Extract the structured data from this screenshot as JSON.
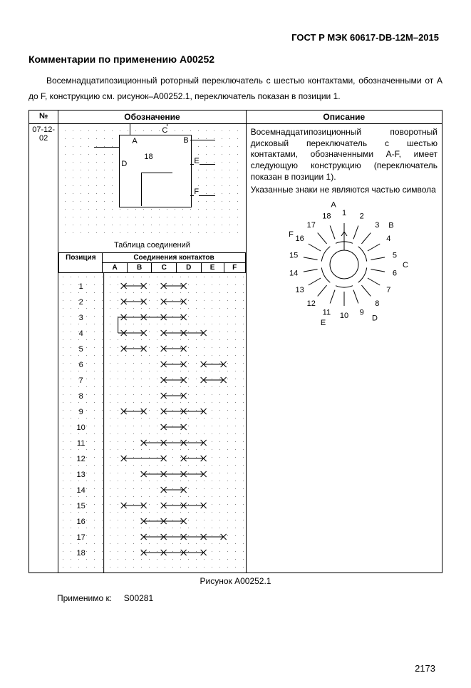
{
  "doc_id": "ГОСТ Р МЭК 60617-DB-12M–2015",
  "section_title": "Комментарии по применению A00252",
  "intro": "Восемнадцатипозиционный роторный переключатель с шестью контактами, обозначенными от A до F, конструкцию см. рисунок–A00252.1, переключатель показан в позиции 1.",
  "num_header": "№",
  "num_cell": "07-12-02",
  "col_left_header": "Обозначение",
  "col_right_header": "Описание",
  "symbol": {
    "labels": {
      "A": "A",
      "B": "B",
      "C": "C",
      "D": "D",
      "E": "E",
      "F": "F",
      "18": "18"
    },
    "caption": "Таблица соединений"
  },
  "conn_pos_header": "Позиция",
  "conn_contacts_header": "Соединения контактов",
  "columns": [
    "A",
    "B",
    "C",
    "D",
    "E",
    "F"
  ],
  "positions": [
    1,
    2,
    3,
    4,
    5,
    6,
    7,
    8,
    9,
    10,
    11,
    12,
    13,
    14,
    15,
    16,
    17,
    18
  ],
  "connections": {
    "1": [
      [
        0,
        1
      ],
      [
        2,
        3
      ]
    ],
    "2": [
      [
        0,
        1
      ],
      [
        2,
        3
      ]
    ],
    "3": [
      [
        0,
        1,
        2,
        3
      ]
    ],
    "4": [
      [
        0,
        1
      ],
      [
        2,
        3,
        4
      ]
    ],
    "5": [
      [
        0,
        1
      ],
      [
        2,
        3
      ]
    ],
    "6": [
      [
        2,
        3
      ],
      [
        4,
        5
      ]
    ],
    "7": [
      [
        2,
        3
      ],
      [
        4,
        5
      ]
    ],
    "8": [
      [
        2,
        3
      ]
    ],
    "9": [
      [
        0,
        1
      ],
      [
        2,
        3,
        4
      ]
    ],
    "10": [
      [
        2,
        3
      ]
    ],
    "11": [
      [
        1,
        2,
        3,
        4
      ]
    ],
    "12": [
      [
        0,
        2
      ],
      [
        3,
        4
      ]
    ],
    "13": [
      [
        1,
        2,
        3,
        4
      ]
    ],
    "14": [
      [
        2,
        3
      ]
    ],
    "15": [
      [
        0,
        1
      ],
      [
        2,
        3,
        4
      ]
    ],
    "16": [
      [
        1,
        2,
        3
      ]
    ],
    "17": [
      [
        1,
        2,
        3,
        4,
        5
      ]
    ],
    "18": [
      [
        1,
        2,
        3,
        4
      ]
    ]
  },
  "special_shapes": {
    "3_to_4_step": true
  },
  "description": "Восемнадцатипозиционный поворотный дисковый переключатель с шестью контактами, обозначенными A-F, имеет следующую конструкцию (переключатель показан в позиции 1).",
  "description2": "Указанные знаки не являются частью символа",
  "rotary_labels": [
    "1",
    "2",
    "3",
    "4",
    "5",
    "6",
    "7",
    "8",
    "9",
    "10",
    "11",
    "12",
    "13",
    "14",
    "15",
    "16",
    "17",
    "18"
  ],
  "rotary_letters": [
    "A",
    "B",
    "C",
    "D",
    "E",
    "F"
  ],
  "figure_label": "Рисунок   A00252.1",
  "applies_label": "Применимо к:",
  "applies_value": "S00281",
  "page_number": "2173"
}
